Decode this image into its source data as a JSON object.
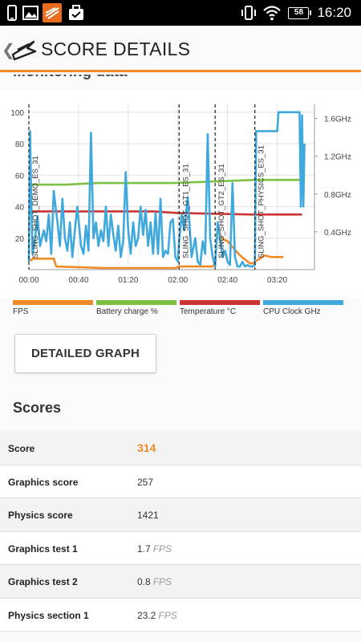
{
  "status_bar": {
    "battery_level": "58",
    "time": "16:20",
    "icons": [
      "phone-icon",
      "image-icon",
      "3dmark-notification-icon",
      "briefcase-check-icon",
      "vibrate-icon",
      "wifi-icon",
      "battery-icon"
    ]
  },
  "app_bar": {
    "title": "SCORE DETAILS"
  },
  "monitoring": {
    "section_title": "Monitoring data"
  },
  "chart_data": {
    "type": "line",
    "x_ticks": [
      "00:00",
      "00:40",
      "01:20",
      "02:00",
      "02:40",
      "03:20"
    ],
    "y_left_ticks": [
      20,
      40,
      60,
      80,
      100
    ],
    "y_left_range": [
      0,
      105
    ],
    "y_right_ticks": [
      "0.4GHz",
      "0.8GHz",
      "1.2GHz",
      "1.6GHz"
    ],
    "grid": true,
    "test_markers": [
      {
        "label": "SLING_SHOT_DEMO_ES_31",
        "t": 0
      },
      {
        "label": "SLING_SHOT_GT1_ES_31",
        "t": 121
      },
      {
        "label": "SLING_SHOT_GT2_ES_31",
        "t": 150
      },
      {
        "label": "SLING_SHOT_PHYSICS_ES_31",
        "t": 182
      }
    ],
    "series": [
      {
        "name": "FPS",
        "color": "#f08a28",
        "x": [
          0,
          2,
          3,
          20,
          22,
          60,
          100,
          118,
          121,
          124,
          140,
          148,
          150,
          152,
          155,
          160,
          170,
          178,
          180,
          190,
          195,
          205
        ],
        "y": [
          6,
          6,
          7,
          7,
          2,
          1,
          1,
          1,
          2,
          2,
          2,
          2,
          4,
          28,
          20,
          18,
          9,
          4,
          4,
          9,
          8,
          8
        ]
      },
      {
        "name": "Battery charge %",
        "color": "#7dc142",
        "x": [
          0,
          30,
          55,
          115,
          150,
          182,
          220
        ],
        "y": [
          54,
          54,
          55,
          55,
          56,
          57,
          57
        ]
      },
      {
        "name": "Temperature °C",
        "color": "#cc3333",
        "x": [
          0,
          100,
          120,
          180,
          220
        ],
        "y": [
          37,
          37,
          36,
          35,
          35
        ]
      },
      {
        "name": "CPU Clock GHz",
        "color": "#3fa9de",
        "x": [
          0,
          1,
          2,
          3,
          5,
          7,
          9,
          12,
          14,
          16,
          18,
          20,
          23,
          25,
          27,
          29,
          31,
          33,
          35,
          37,
          39,
          42,
          44,
          46,
          48,
          50,
          52,
          54,
          56,
          58,
          60,
          62,
          64,
          66,
          68,
          70,
          72,
          74,
          76,
          78,
          80,
          82,
          84,
          86,
          88,
          90,
          92,
          94,
          96,
          98,
          100,
          102,
          104,
          106,
          108,
          110,
          112,
          114,
          116,
          118,
          120,
          121,
          123,
          125,
          128,
          131,
          134,
          136,
          138,
          140,
          142,
          144,
          146,
          148,
          150,
          152,
          154,
          156,
          158,
          160,
          162,
          164,
          166,
          168,
          170,
          172,
          174,
          176,
          178,
          180,
          182,
          183,
          200,
          201,
          218,
          219,
          220,
          221,
          222
        ],
        "y": [
          5,
          88,
          40,
          10,
          20,
          34,
          15,
          25,
          18,
          35,
          10,
          50,
          30,
          15,
          45,
          20,
          12,
          30,
          8,
          25,
          40,
          15,
          10,
          28,
          12,
          87,
          20,
          30,
          15,
          25,
          18,
          40,
          15,
          35,
          22,
          12,
          28,
          8,
          18,
          62,
          25,
          10,
          30,
          15,
          20,
          40,
          22,
          38,
          15,
          30,
          10,
          36,
          10,
          45,
          8,
          12,
          10,
          30,
          32,
          8,
          5,
          18,
          35,
          25,
          46,
          8,
          20,
          5,
          3,
          18,
          10,
          86,
          20,
          8,
          2,
          30,
          20,
          8,
          12,
          5,
          3,
          55,
          8,
          2,
          2,
          5,
          2,
          3,
          2,
          2,
          3,
          88,
          88,
          100,
          100,
          40,
          98,
          40,
          80
        ]
      }
    ]
  },
  "legend": [
    {
      "label": "FPS",
      "color": "#f08a28"
    },
    {
      "label": "Battery charge %",
      "color": "#7dc142"
    },
    {
      "label": "Temperature °C",
      "color": "#cc3333"
    },
    {
      "label": "CPU Clock GHz",
      "color": "#3fa9de"
    }
  ],
  "detailed_graph_button": "DETAILED GRAPH",
  "scores": {
    "heading": "Scores",
    "rows": [
      {
        "label": "Score",
        "value": "314",
        "unit": ""
      },
      {
        "label": "Graphics score",
        "value": "257",
        "unit": ""
      },
      {
        "label": "Physics score",
        "value": "1421",
        "unit": ""
      },
      {
        "label": "Graphics test 1",
        "value": "1.7",
        "unit": "FPS"
      },
      {
        "label": "Graphics test 2",
        "value": "0.8",
        "unit": "FPS"
      },
      {
        "label": "Physics section 1",
        "value": "23.2",
        "unit": "FPS"
      }
    ]
  }
}
